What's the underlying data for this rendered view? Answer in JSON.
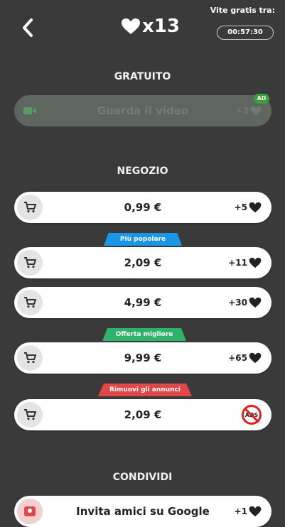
{
  "header": {
    "lives_count": "x13",
    "timer_label": "Vite gratis tra:",
    "timer_value": "00:57:30"
  },
  "free_section": {
    "title": "GRATUITO",
    "video_label": "Guarda il video",
    "video_reward": "+2",
    "ad_badge": "AD"
  },
  "shop_section": {
    "title": "NEGOZIO",
    "items": [
      {
        "price": "0,99 €",
        "reward": "+5"
      },
      {
        "tag": "Più popolare",
        "price": "2,09 €",
        "reward": "+11"
      },
      {
        "price": "4,99 €",
        "reward": "+30"
      },
      {
        "tag": "Offerta migliore",
        "price": "9,99 €",
        "reward": "+65"
      },
      {
        "tag": "Rimuovi gli annunci",
        "price": "2,09 €",
        "reward_icon_text": "ADS"
      }
    ]
  },
  "share_section": {
    "title": "CONDIVIDI",
    "invite_label": "Invita amici su Google",
    "invite_reward": "+1"
  },
  "colors": {
    "background": "#3a3a3a",
    "tag_popular": "#1a96e9",
    "tag_best": "#2fb36a",
    "tag_remove_ads": "#e04747",
    "ad_badge": "#3aa13a"
  }
}
